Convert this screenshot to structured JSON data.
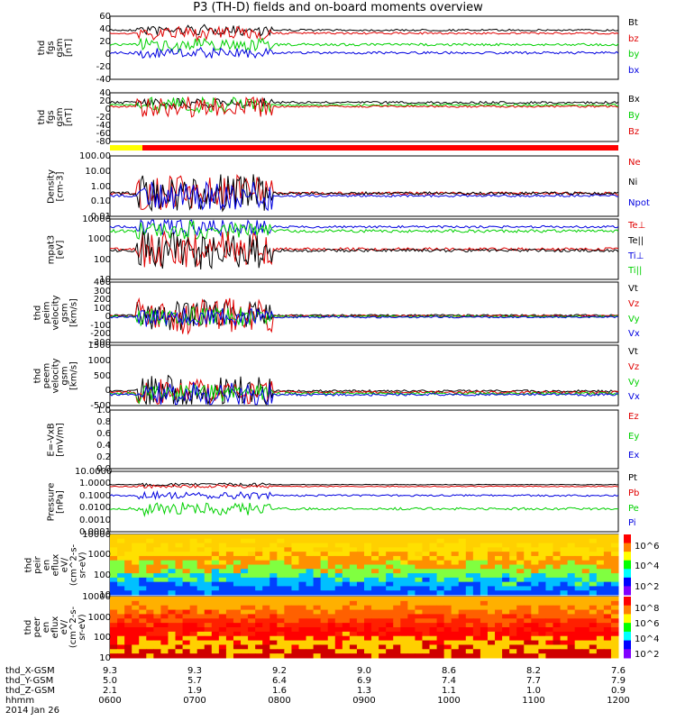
{
  "title": "P3 (TH-D) fields and on-board moments overview",
  "colors": {
    "black": "#000000",
    "red": "#e00000",
    "green": "#00d000",
    "blue": "#0000e0",
    "gray": "#777777"
  },
  "panels": [
    {
      "id": "fgs-btot",
      "label": [
        "thd",
        "fgs",
        "gsm",
        "[nT]"
      ],
      "ticks": [
        "60",
        "40",
        "20",
        "0",
        "-20",
        "-40"
      ],
      "legend": [
        {
          "text": "Bt",
          "color": "black"
        },
        {
          "text": "bz",
          "color": "red"
        },
        {
          "text": "by",
          "color": "green"
        },
        {
          "text": "bx",
          "color": "blue"
        }
      ]
    },
    {
      "id": "fgs-b",
      "label": [
        "thd",
        "fgs",
        "gsm",
        "[nT]"
      ],
      "ticks": [
        "40",
        "20",
        "0",
        "-20",
        "-40",
        "-60",
        "-80"
      ],
      "legend": [
        {
          "text": "Bx",
          "color": "black"
        },
        {
          "text": "By",
          "color": "green"
        },
        {
          "text": "Bz",
          "color": "red"
        }
      ]
    },
    {
      "id": "density",
      "label": [
        "Density",
        "[cm-3]"
      ],
      "ticks": [
        "100.00",
        "10.00",
        "1.00",
        "0.10",
        "0.01"
      ],
      "legend": [
        {
          "text": "Ne",
          "color": "red"
        },
        {
          "text": "Ni",
          "color": "black"
        },
        {
          "text": "Npot",
          "color": "blue"
        }
      ]
    },
    {
      "id": "temp",
      "label": [
        "mpat3",
        "[eV]"
      ],
      "ticks": [
        "10000",
        "1000",
        "100",
        "10"
      ],
      "legend": [
        {
          "text": "Te⊥",
          "color": "red"
        },
        {
          "text": "Te||",
          "color": "black"
        },
        {
          "text": "Ti⊥",
          "color": "blue"
        },
        {
          "text": "Ti||",
          "color": "green"
        }
      ]
    },
    {
      "id": "vi",
      "label": [
        "thd",
        "peim",
        "velocity",
        "gsm",
        "[km/s]"
      ],
      "ticks": [
        "400",
        "300",
        "200",
        "100",
        "0",
        "-100",
        "-200",
        "-300"
      ],
      "legend": [
        {
          "text": "Vt",
          "color": "black"
        },
        {
          "text": "Vz",
          "color": "red"
        },
        {
          "text": "Vy",
          "color": "green"
        },
        {
          "text": "Vx",
          "color": "blue"
        }
      ]
    },
    {
      "id": "ve",
      "label": [
        "thd",
        "peem",
        "velocity",
        "gsm",
        "[km/s]"
      ],
      "ticks": [
        "1500",
        "1000",
        "500",
        "0",
        "-500"
      ],
      "legend": [
        {
          "text": "Vt",
          "color": "black"
        },
        {
          "text": "Vz",
          "color": "red"
        },
        {
          "text": "Vy",
          "color": "green"
        },
        {
          "text": "Vx",
          "color": "blue"
        }
      ]
    },
    {
      "id": "efield",
      "label": [
        "E=-VxB",
        "[mV/m]"
      ],
      "ticks": [
        "1.0",
        "0.8",
        "0.6",
        "0.4",
        "0.2",
        "0.0"
      ],
      "legend": [
        {
          "text": "Ez",
          "color": "red"
        },
        {
          "text": "Ey",
          "color": "green"
        },
        {
          "text": "Ex",
          "color": "blue"
        }
      ]
    },
    {
      "id": "pressure",
      "label": [
        "Pressure",
        "[nPa]"
      ],
      "ticks": [
        "10.0000",
        "1.0000",
        "0.1000",
        "0.0100",
        "0.0010",
        "0.0001"
      ],
      "legend": [
        {
          "text": "Pt",
          "color": "black"
        },
        {
          "text": "Pb",
          "color": "red"
        },
        {
          "text": "Pe",
          "color": "green"
        },
        {
          "text": "Pi",
          "color": "blue"
        }
      ]
    },
    {
      "id": "peir",
      "label": [
        "thd",
        "peir",
        "en",
        "eflux",
        "eV/",
        "(cm^2-s-",
        "sr-eV)"
      ],
      "ticks": [
        "10000",
        "1000",
        "100",
        "10"
      ],
      "colorbar": [
        "10^6",
        "10^4",
        "10^2"
      ]
    },
    {
      "id": "peer",
      "label": [
        "thd",
        "peer",
        "en",
        "eflux",
        "eV/",
        "(cm^2-s-",
        "sr-eV)"
      ],
      "ticks": [
        "10000",
        "1000",
        "100",
        "10"
      ],
      "colorbar": [
        "10^8",
        "10^6",
        "10^4",
        "10^2"
      ]
    }
  ],
  "chart_data": {
    "type": "line",
    "title": "P3 (TH-D) fields and on-board moments overview",
    "x": [
      "0600",
      "0700",
      "0800",
      "0900",
      "1000",
      "1100",
      "1200"
    ],
    "xlabel": "hhmm",
    "date": "2014 Jan 26",
    "ephemeris": [
      {
        "name": "thd_X-GSM",
        "values": [
          "9.3",
          "9.3",
          "9.2",
          "9.0",
          "8.6",
          "8.2",
          "7.6"
        ]
      },
      {
        "name": "thd_Y-GSM",
        "values": [
          "5.0",
          "5.7",
          "6.4",
          "6.9",
          "7.4",
          "7.7",
          "7.9"
        ]
      },
      {
        "name": "thd_Z-GSM",
        "values": [
          "2.1",
          "1.9",
          "1.6",
          "1.3",
          "1.1",
          "1.0",
          "0.9"
        ]
      }
    ],
    "series_summary": [
      {
        "panel": "fgs-btot",
        "series": [
          {
            "name": "Bt",
            "value": 45
          },
          {
            "name": "bz",
            "value": 40
          },
          {
            "name": "by",
            "value": 15
          },
          {
            "name": "bx",
            "value": -2
          }
        ]
      },
      {
        "panel": "fgs-b",
        "series": [
          {
            "name": "Bx",
            "value": 10
          },
          {
            "name": "By",
            "value": 0
          },
          {
            "name": "Bz",
            "value": -10
          }
        ]
      },
      {
        "panel": "density",
        "series": [
          {
            "name": "Ne",
            "value": 0.3
          },
          {
            "name": "Ni",
            "value": 0.3
          },
          {
            "name": "Npot",
            "value": 0.2
          }
        ]
      },
      {
        "panel": "temp",
        "series": [
          {
            "name": "Te⊥",
            "value": 800
          },
          {
            "name": "Te||",
            "value": 700
          },
          {
            "name": "Ti⊥",
            "value": 3000
          },
          {
            "name": "Ti||",
            "value": 2500
          }
        ]
      }
    ],
    "ylim_density": [
      0.01,
      100
    ],
    "ylim_btot": [
      -40,
      60
    ]
  }
}
